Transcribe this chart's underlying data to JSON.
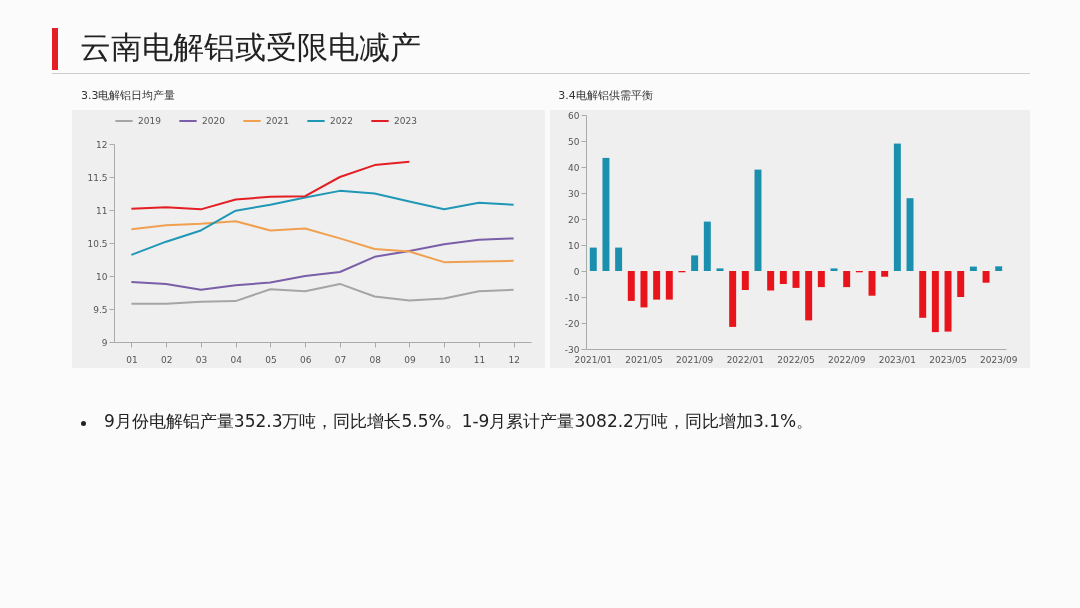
{
  "chart_data": [
    {
      "type": "other",
      "title": "云南电解铝或受限电减产",
      "annotations": [
        "9月份电解铝产量352.3万吨，同比增长5.5%。1-9月累计产量3082.2万吨，同比增加3.1%。"
      ]
    },
    {
      "type": "line",
      "title": "3.3电解铝日均产量",
      "categories": [
        "01",
        "02",
        "03",
        "04",
        "05",
        "06",
        "07",
        "08",
        "09",
        "10",
        "11",
        "12"
      ],
      "ylim": [
        9,
        12
      ],
      "yticks": [
        9,
        9.5,
        10,
        10.5,
        11,
        11.5,
        12
      ],
      "legend": "top",
      "marker": "none",
      "series": [
        {
          "name": "2019",
          "color": "#a5a5a5",
          "values": [
            9.58,
            9.58,
            9.61,
            9.62,
            9.8,
            9.77,
            9.88,
            9.69,
            9.63,
            9.66,
            9.77,
            9.79
          ]
        },
        {
          "name": "2020",
          "color": "#7a5fa8",
          "values": [
            9.91,
            9.88,
            9.79,
            9.86,
            9.9,
            10.0,
            10.06,
            10.29,
            10.38,
            10.48,
            10.55,
            10.57
          ]
        },
        {
          "name": "2021",
          "color": "#f0a050",
          "values": [
            10.71,
            10.77,
            10.79,
            10.83,
            10.69,
            10.72,
            10.57,
            10.41,
            10.37,
            10.21,
            10.22,
            10.23
          ]
        },
        {
          "name": "2022",
          "color": "#1f97b5",
          "values": [
            10.32,
            10.52,
            10.69,
            10.99,
            11.08,
            11.19,
            11.29,
            11.25,
            11.13,
            11.01,
            11.11,
            11.08
          ]
        },
        {
          "name": "2023",
          "color": "#e31e24",
          "values": [
            11.02,
            11.04,
            11.01,
            11.16,
            11.2,
            11.21,
            11.5,
            11.68,
            11.73,
            null,
            null,
            null
          ]
        }
      ]
    },
    {
      "type": "bar",
      "title": "3.4电解铝供需平衡",
      "categories": [
        "2021/01",
        null,
        null,
        null,
        "2021/05",
        null,
        null,
        null,
        "2021/09",
        null,
        null,
        null,
        "2022/01",
        null,
        null,
        null,
        "2022/05",
        null,
        null,
        null,
        "2022/09",
        null,
        null,
        null,
        "2023/01",
        null,
        null,
        null,
        "2023/05",
        null,
        null,
        null,
        "2023/09"
      ],
      "ylim": [
        -30,
        60
      ],
      "yticks": [
        -30,
        -20,
        -10,
        0,
        10,
        20,
        30,
        40,
        50,
        60
      ],
      "values": [
        9,
        43.5,
        9,
        -11.5,
        -14,
        -11,
        -11,
        -0.5,
        6,
        19,
        1,
        -21.5,
        -7.3,
        39,
        -7.5,
        -5,
        -6.5,
        -19,
        -6.2,
        1,
        -6.2,
        -0.5,
        -9.5,
        -2.2,
        49,
        28,
        -18,
        -23.5,
        -23.3,
        -10,
        1.7,
        -4.5,
        1.8
      ],
      "colors": [
        "#1a8fae",
        "#1a8fae",
        "#1a8fae",
        "#e8141b",
        "#e8141b",
        "#e8141b",
        "#e8141b",
        "#e8141b",
        "#1a8fae",
        "#1a8fae",
        "#1a8fae",
        "#e8141b",
        "#e8141b",
        "#1a8fae",
        "#e8141b",
        "#e8141b",
        "#e8141b",
        "#e8141b",
        "#e8141b",
        "#1a8fae",
        "#e8141b",
        "#e8141b",
        "#e8141b",
        "#e8141b",
        "#1a8fae",
        "#1a8fae",
        "#e8141b",
        "#e8141b",
        "#e8141b",
        "#e8141b",
        "#1a8fae",
        "#e8141b",
        "#1a8fae"
      ]
    }
  ]
}
